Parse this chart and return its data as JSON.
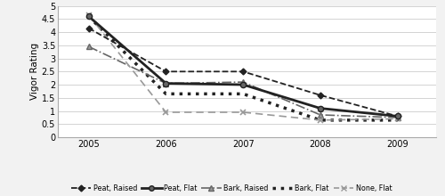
{
  "years": [
    2005,
    2006,
    2007,
    2008,
    2009
  ],
  "series": {
    "Peat, Raised": [
      4.15,
      2.5,
      2.5,
      1.6,
      0.8
    ],
    "Peat, Flat": [
      4.6,
      2.05,
      2.0,
      1.1,
      0.8
    ],
    "Bark, Raised": [
      3.45,
      2.05,
      2.1,
      0.85,
      0.75
    ],
    "Bark, Flat": [
      4.6,
      1.65,
      1.65,
      0.65,
      0.65
    ],
    "None, Flat": [
      4.65,
      0.95,
      0.95,
      0.65,
      0.7
    ]
  },
  "ylim": [
    0,
    5
  ],
  "yticks": [
    0,
    0.5,
    1.0,
    1.5,
    2.0,
    2.5,
    3.0,
    3.5,
    4.0,
    4.5,
    5.0
  ],
  "ylabel": "Vigor Rating",
  "fig_bg": "#f2f2f2",
  "plot_bg": "#ffffff",
  "legend_labels": [
    "Peat, Raised",
    "Peat, Flat",
    "Bark, Raised",
    "Bark, Flat",
    "None, Flat"
  ]
}
